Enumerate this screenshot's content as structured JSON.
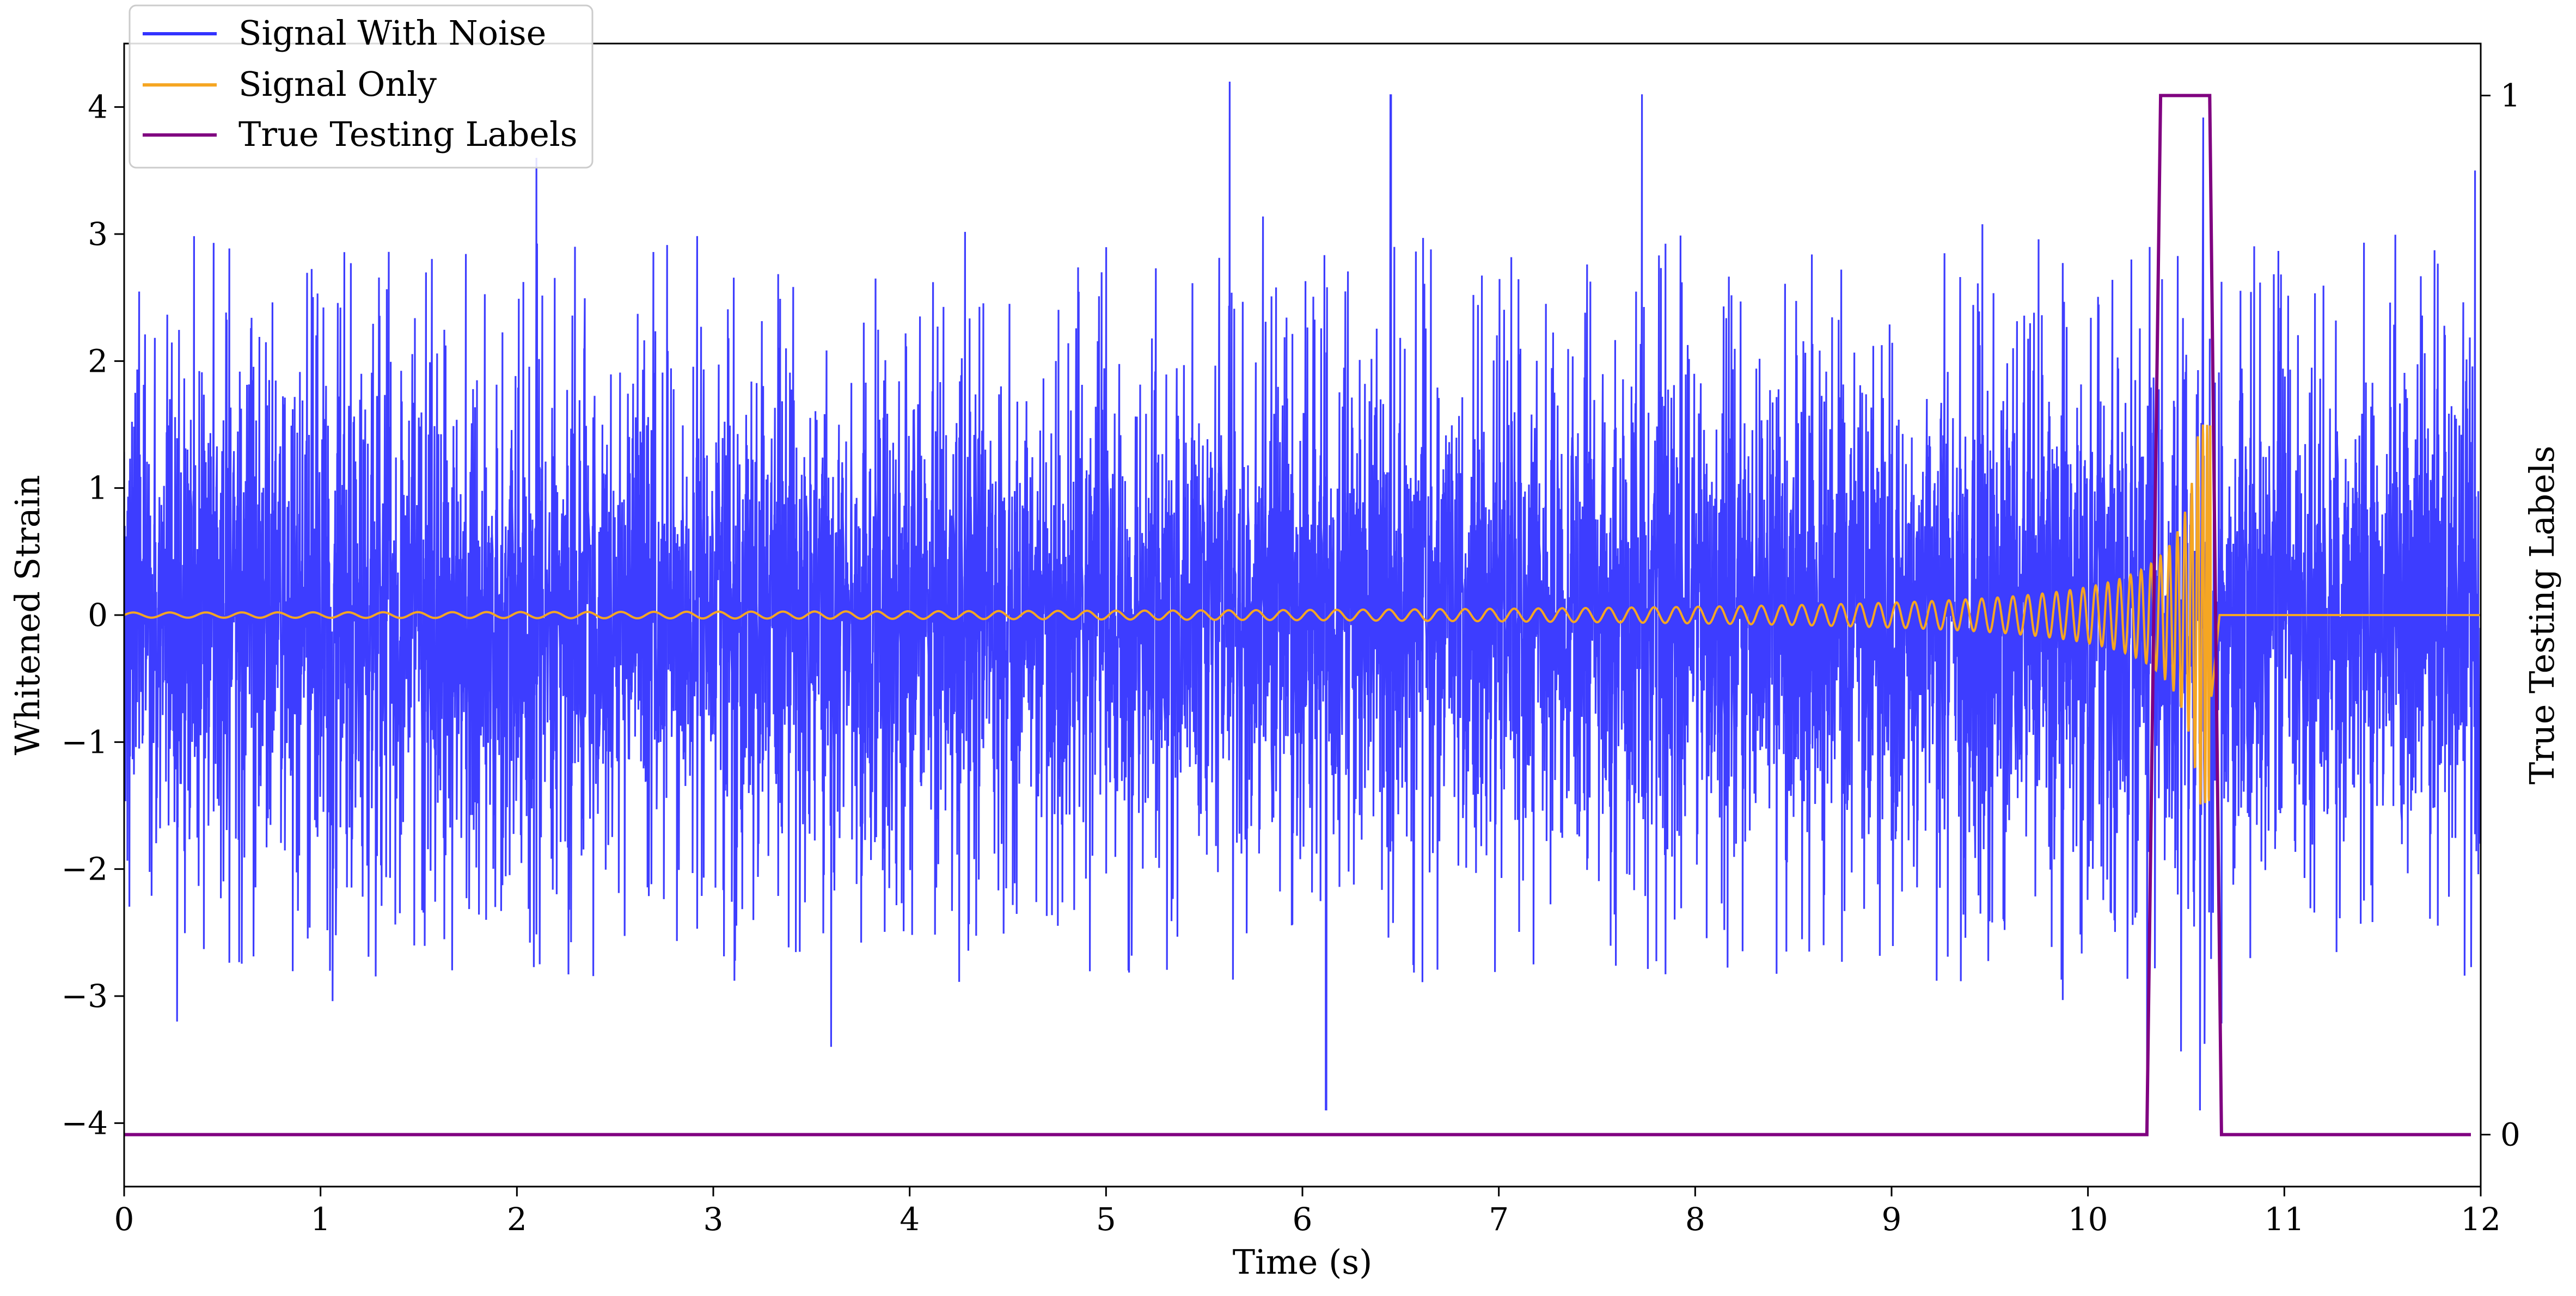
{
  "chart_data": {
    "type": "line",
    "xlabel": "Time (s)",
    "ylabel": "Whitened Strain",
    "ylabel_right": "True Testing Labels",
    "xlim": [
      0,
      12
    ],
    "ylim": [
      -4.5,
      4.5
    ],
    "ylim_right": [
      -0.05,
      1.05
    ],
    "x_ticks": [
      "0",
      "1",
      "2",
      "3",
      "4",
      "5",
      "6",
      "7",
      "8",
      "9",
      "10",
      "11",
      "12"
    ],
    "y_ticks": [
      "−4",
      "−3",
      "−2",
      "−1",
      "0",
      "1",
      "2",
      "3",
      "4"
    ],
    "y_ticks_right": [
      "0",
      "1"
    ],
    "grid": false,
    "legend_position": "top-left",
    "series": [
      {
        "name": "Signal With Noise",
        "color": "#3333ff",
        "axis": "left",
        "description_values": {
          "approx_std": 0.9,
          "approx_min": -3.9,
          "approx_max": 4.2,
          "notable_spikes": [
            [
              0.27,
              -3.2
            ],
            [
              2.1,
              3.6
            ],
            [
              3.6,
              -3.4
            ],
            [
              5.63,
              4.2
            ],
            [
              6.12,
              -3.9
            ],
            [
              6.45,
              4.1
            ],
            [
              7.73,
              4.1
            ],
            [
              10.3,
              -3.6
            ],
            [
              11.97,
              3.5
            ]
          ]
        }
      },
      {
        "name": "Signal Only",
        "color": "#f5a623",
        "axis": "left",
        "description_values": {
          "type": "chirp",
          "merger_time": 10.63,
          "start_amplitude": 0.02,
          "peak_amplitude": 1.5,
          "end_time": 10.67
        }
      },
      {
        "name": "True Testing Labels",
        "color": "#800080",
        "axis": "right",
        "x": [
          0,
          10.3,
          10.37,
          10.62,
          10.68,
          11.95
        ],
        "y": [
          0,
          0,
          1,
          1,
          0,
          0
        ]
      }
    ]
  }
}
